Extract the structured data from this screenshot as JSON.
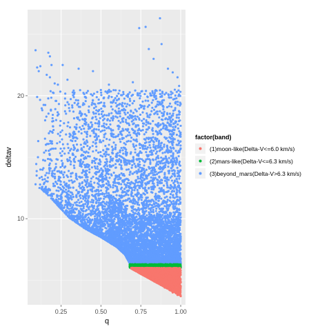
{
  "chart_data": {
    "type": "scatter",
    "title": "",
    "xlabel": "q",
    "ylabel": "deltav",
    "xlim": [
      0.04,
      1.03
    ],
    "ylim": [
      3.0,
      27.0
    ],
    "x_ticks": [
      0.25,
      0.5,
      0.75,
      1.0
    ],
    "x_tick_labels": [
      "0.25",
      "0.50",
      "0.75",
      "1.00"
    ],
    "y_ticks": [
      10,
      20
    ],
    "y_tick_labels": [
      "10",
      "20"
    ],
    "grid": true,
    "panel_background": "#ebebeb",
    "legend": {
      "title": "factor(band)",
      "position": "right"
    },
    "series": [
      {
        "name": "(1)moon-like(Delta-V<=6.0 km/s)",
        "color": "#F8766D",
        "region": {
          "x_range": [
            0.67,
            1.0
          ],
          "y_range": [
            3.7,
            6.0
          ],
          "note": "dense cloud bounded below by lower envelope of beyond_mars band"
        },
        "values": [
          [
            0.69,
            5.95
          ],
          [
            0.72,
            5.8
          ],
          [
            0.75,
            5.6
          ],
          [
            0.78,
            5.4
          ],
          [
            0.8,
            5.2
          ],
          [
            0.83,
            5.0
          ],
          [
            0.85,
            4.8
          ],
          [
            0.88,
            4.6
          ],
          [
            0.9,
            4.4
          ],
          [
            0.93,
            4.2
          ],
          [
            0.95,
            4.0
          ],
          [
            0.98,
            3.8
          ],
          [
            1.0,
            3.7
          ]
        ]
      },
      {
        "name": "(2)mars-like(Delta-V<=6.3 km/s)",
        "color": "#00BA38",
        "values": [
          [
            0.68,
            6.1
          ],
          [
            0.71,
            6.15
          ],
          [
            0.75,
            6.2
          ],
          [
            0.8,
            6.15
          ],
          [
            0.85,
            6.2
          ],
          [
            0.9,
            6.15
          ],
          [
            0.95,
            6.2
          ],
          [
            1.0,
            6.15
          ]
        ]
      },
      {
        "name": "(3)beyond_mars(Delta-V>6.3 km/s)",
        "color": "#619CFF",
        "values": [
          [
            0.09,
            23.7
          ],
          [
            0.1,
            22.3
          ],
          [
            0.12,
            22.4
          ],
          [
            0.11,
            22.0
          ],
          [
            0.16,
            21.7
          ],
          [
            0.17,
            23.5
          ],
          [
            0.18,
            23.2
          ],
          [
            0.19,
            22.5
          ],
          [
            0.18,
            21.5
          ],
          [
            0.21,
            21.0
          ],
          [
            0.23,
            20.9
          ],
          [
            0.26,
            22.5
          ],
          [
            0.29,
            21.3
          ],
          [
            0.36,
            22.2
          ],
          [
            0.45,
            22.0
          ],
          [
            0.74,
            25.5
          ],
          [
            0.78,
            25.6
          ],
          [
            0.87,
            26.3
          ],
          [
            0.8,
            23.8
          ],
          [
            0.83,
            23.0
          ],
          [
            0.88,
            24.2
          ],
          [
            0.92,
            22.2
          ],
          [
            0.95,
            21.9
          ],
          [
            0.98,
            21.5
          ],
          [
            0.99,
            20.8
          ],
          [
            0.7,
            21.1
          ],
          [
            0.73,
            20.2
          ],
          [
            0.78,
            19.6
          ],
          [
            0.84,
            20.4
          ],
          [
            0.55,
            20.9
          ],
          [
            0.59,
            19.8
          ],
          [
            0.64,
            20.3
          ],
          [
            0.66,
            20.0
          ],
          [
            0.09,
            12.8
          ],
          [
            0.12,
            14.0
          ],
          [
            0.1,
            19.9
          ],
          [
            0.15,
            18.0
          ],
          [
            0.2,
            17.5
          ],
          [
            0.3,
            19.0
          ],
          [
            0.4,
            18.5
          ]
        ],
        "lower_envelope": [
          [
            0.12,
            12.5
          ],
          [
            0.2,
            11.5
          ],
          [
            0.3,
            10.1
          ],
          [
            0.4,
            9.2
          ],
          [
            0.5,
            8.5
          ],
          [
            0.6,
            7.7
          ],
          [
            0.65,
            7.1
          ],
          [
            0.68,
            6.4
          ]
        ],
        "note": "dense cloud from lower envelope up to ~20; sparse above"
      }
    ]
  }
}
